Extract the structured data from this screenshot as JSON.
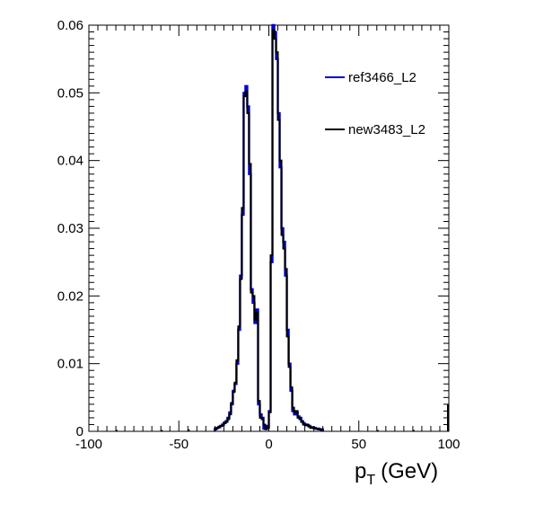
{
  "chart_data": {
    "type": "line",
    "step": true,
    "title": "",
    "xlabel_main": "p",
    "xlabel_sub": "T",
    "xlabel_unit": "(GeV)",
    "ylabel": "",
    "xlim": [
      -100,
      100
    ],
    "ylim": [
      0,
      0.06
    ],
    "grid": false,
    "legend_position": "top-right",
    "x_ticks": [
      -100,
      -50,
      0,
      50,
      100
    ],
    "x_tick_labels": [
      "-100",
      "-50",
      "0",
      "50",
      "100"
    ],
    "y_ticks": [
      0,
      0.01,
      0.02,
      0.03,
      0.04,
      0.05,
      0.06
    ],
    "y_tick_labels": [
      "0",
      "0.01",
      "0.02",
      "0.03",
      "0.04",
      "0.05",
      "0.06"
    ],
    "bin_width": 1,
    "x": [
      -30,
      -29,
      -28,
      -27,
      -26,
      -25,
      -24,
      -23,
      -22,
      -21,
      -20,
      -19,
      -18,
      -17,
      -16,
      -15,
      -14,
      -13,
      -12,
      -11,
      -10,
      -9,
      -8,
      -7,
      -6,
      -5,
      -4,
      -3,
      -2,
      -1,
      0,
      1,
      2,
      3,
      4,
      5,
      6,
      7,
      8,
      9,
      10,
      11,
      12,
      13,
      14,
      15,
      16,
      17,
      18,
      19,
      20,
      21,
      22,
      23,
      24,
      25,
      26,
      27,
      28,
      29
    ],
    "series": [
      {
        "name": "ref3466_L2",
        "color": "#0000cc",
        "values": [
          0.0004,
          0.0005,
          0.0006,
          0.0008,
          0.001,
          0.0013,
          0.0015,
          0.002,
          0.0028,
          0.004,
          0.006,
          0.007,
          0.01,
          0.015,
          0.023,
          0.032,
          0.05,
          0.051,
          0.048,
          0.038,
          0.021,
          0.019,
          0.016,
          0.018,
          0.004,
          0.0025,
          0.002,
          0.0004,
          0.0008,
          0.0006,
          0.003,
          0.025,
          0.06,
          0.059,
          0.055,
          0.047,
          0.039,
          0.03,
          0.028,
          0.023,
          0.015,
          0.01,
          0.006,
          0.003,
          0.0025,
          0.0028,
          0.0022,
          0.002,
          0.0015,
          0.0012,
          0.001,
          0.0009,
          0.0008,
          0.0006,
          0.0006,
          0.0005,
          0.0004,
          0.0004,
          0.0003,
          0.0003
        ]
      },
      {
        "name": "new3483_L2",
        "color": "#000000",
        "values": [
          0.0003,
          0.0005,
          0.0007,
          0.0008,
          0.0009,
          0.0012,
          0.0014,
          0.0018,
          0.0025,
          0.0042,
          0.0058,
          0.0072,
          0.0105,
          0.0155,
          0.0225,
          0.033,
          0.0495,
          0.0502,
          0.047,
          0.0395,
          0.0205,
          0.02,
          0.0165,
          0.0175,
          0.0045,
          0.002,
          0.0018,
          0.001,
          0.0003,
          0.0005,
          0.0028,
          0.026,
          0.0593,
          0.058,
          0.056,
          0.046,
          0.04,
          0.029,
          0.027,
          0.024,
          0.014,
          0.0095,
          0.0065,
          0.0035,
          0.0028,
          0.003,
          0.002,
          0.0018,
          0.0014,
          0.001,
          0.0009,
          0.001,
          0.0007,
          0.0005,
          0.0006,
          0.0004,
          0.0004,
          0.0003,
          0.0003,
          0.0002
        ]
      }
    ],
    "tail_points": [
      {
        "x": -85,
        "value": 0.0002
      },
      {
        "x": -60,
        "value": 0.0002
      },
      {
        "x": -45,
        "value": 0.0003
      },
      {
        "x": 60,
        "value": 0.0002
      },
      {
        "x": 80,
        "value": 0.0002
      },
      {
        "x": 99,
        "value": 0.004
      }
    ]
  }
}
